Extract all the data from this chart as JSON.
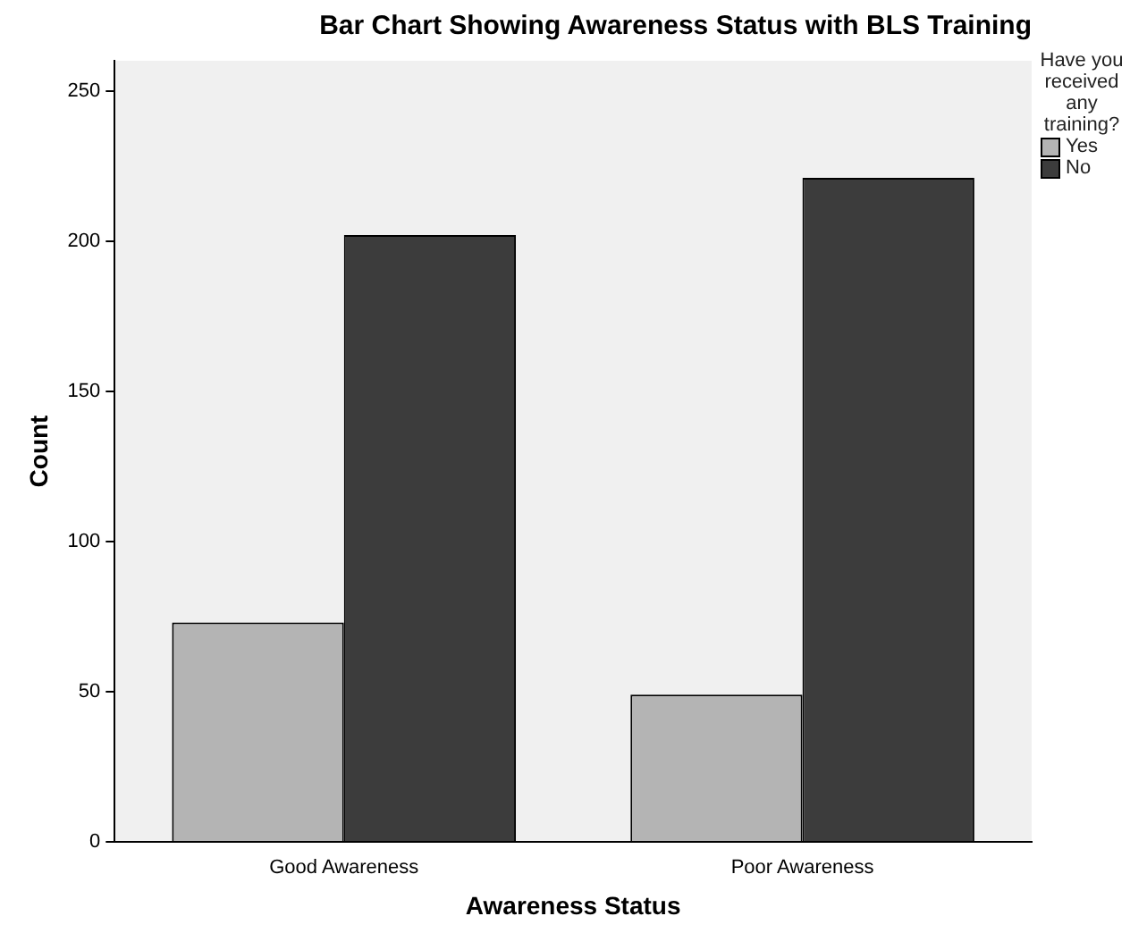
{
  "chart_data": {
    "type": "bar",
    "title": "Bar Chart Showing Awareness Status with BLS Training",
    "xlabel": "Awareness Status",
    "ylabel": "Count",
    "legend_title": "Have you received any training?",
    "categories": [
      "Good Awareness",
      "Poor Awareness"
    ],
    "series": [
      {
        "name": "Yes",
        "color": "#b4b4b4",
        "values": [
          73,
          49
        ]
      },
      {
        "name": "No",
        "color": "#3c3c3c",
        "values": [
          202,
          221
        ]
      }
    ],
    "ylim": [
      0,
      260
    ],
    "yticks": [
      0,
      50,
      100,
      150,
      200,
      250
    ],
    "grid": false,
    "legend": "top right"
  }
}
